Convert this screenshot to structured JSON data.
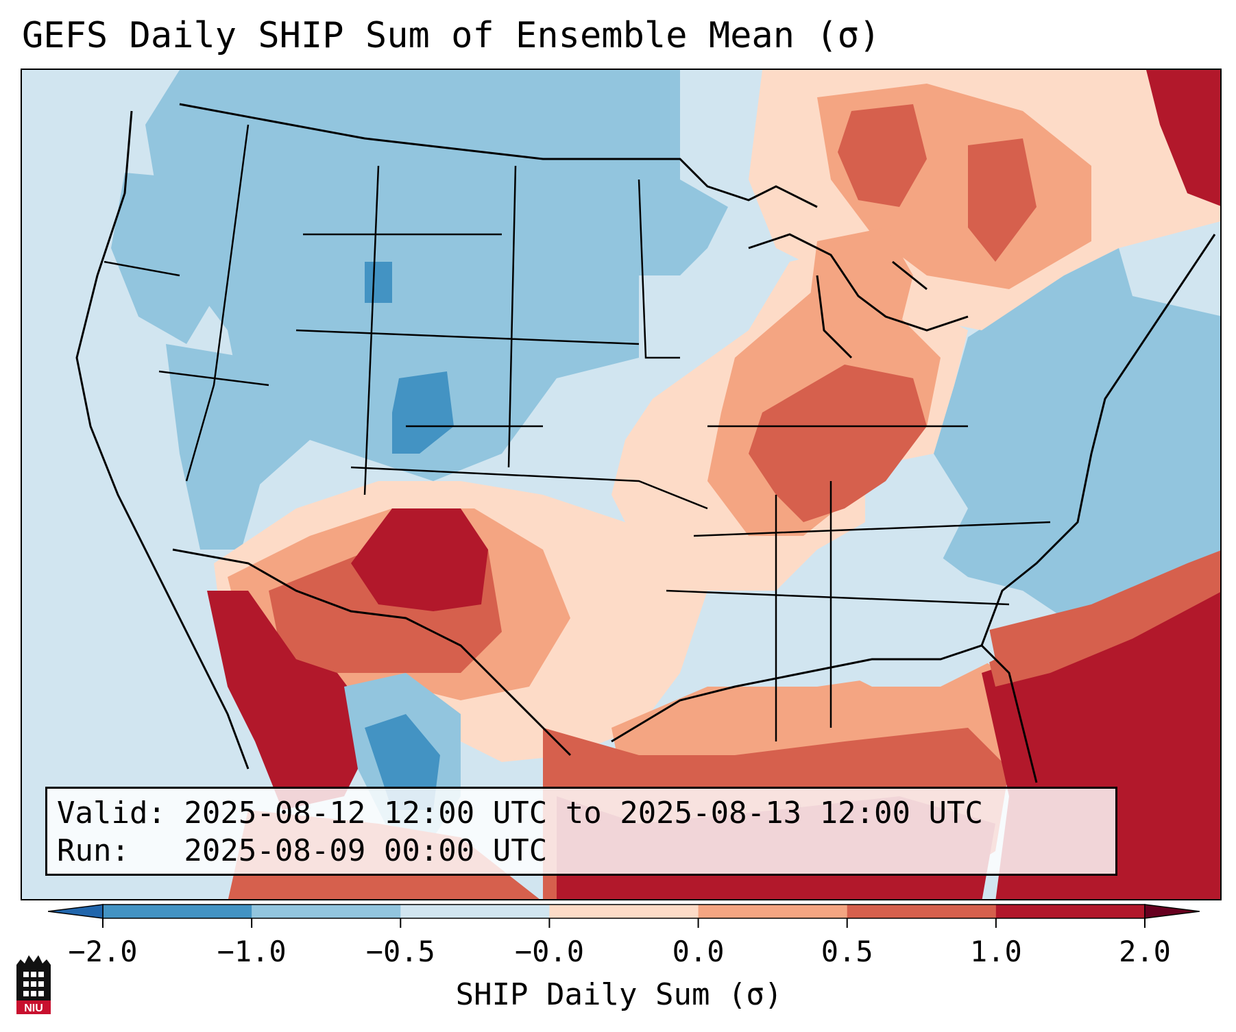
{
  "title": "GEFS Daily SHIP Sum of Ensemble Mean (σ)",
  "info": {
    "valid_line": "Valid: 2025-08-12 12:00 UTC to 2025-08-13 12:00 UTC",
    "run_line": "Run:   2025-08-09 00:00 UTC"
  },
  "colorbar": {
    "label": "SHIP Daily Sum (σ)",
    "ticks": [
      "−2.0",
      "−1.0",
      "−0.5",
      "−0.0",
      "0.0",
      "0.5",
      "1.0",
      "2.0"
    ],
    "colors": [
      "#4393c3",
      "#92c5de",
      "#d1e5f0",
      "#fddbc7",
      "#f4a582",
      "#d6604d",
      "#b2182b"
    ],
    "under_color": "#2166ac",
    "over_color": "#67001f"
  },
  "map": {
    "region": "Contiguous United States",
    "colors": {
      "strong_negative": "#4393c3",
      "negative": "#92c5de",
      "weak_negative": "#d1e5f0",
      "weak_positive": "#fddbc7",
      "positive": "#f4a582",
      "strong_positive": "#d6604d",
      "very_strong_positive": "#b2182b"
    }
  },
  "logo": {
    "text": "NIU"
  }
}
